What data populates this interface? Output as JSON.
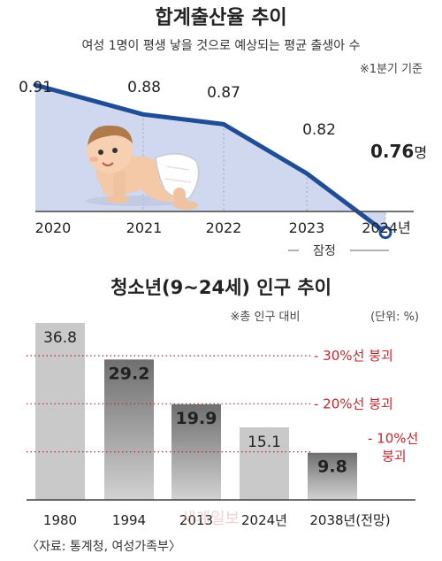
{
  "chart_data": [
    {
      "type": "line",
      "title": "합계출산율 추이",
      "subtitle": "여성 1명이 평생 낳을 것으로 예상되는 평균 출생아 수",
      "note": "※1분기 기준",
      "x": [
        "2020",
        "2021",
        "2022",
        "2023",
        "2024년"
      ],
      "values": [
        0.91,
        0.88,
        0.87,
        0.82,
        0.76
      ],
      "value_labels": [
        "0.91",
        "0.88",
        "0.87",
        "0.82",
        "0.76"
      ],
      "last_value_unit": "명",
      "provisional_label": "잠정",
      "ylim": [
        0.7,
        0.95
      ],
      "colors": {
        "line": "#1f4e97",
        "fill": "#cfd8ef",
        "grid": "#9aa6c4"
      }
    },
    {
      "type": "bar",
      "title": "청소년(9~24세) 인구 추이",
      "note": "※총 인구 대비",
      "unit_label": "(단위: %)",
      "categories": [
        "1980",
        "1994",
        "2013",
        "2024년",
        "2038년(전망)"
      ],
      "values": [
        36.8,
        29.2,
        19.9,
        15.1,
        9.8
      ],
      "value_labels": [
        "36.8",
        "29.2",
        "19.9",
        "15.1",
        "9.8"
      ],
      "ylim": [
        0,
        40
      ],
      "thresholds": [
        {
          "value": 30,
          "label": "- 30%선 붕괴"
        },
        {
          "value": 20,
          "label": "- 20%선 붕괴"
        },
        {
          "value": 10,
          "label": "- 10%선 붕괴"
        }
      ],
      "colors": {
        "bar": "#c9c9c9",
        "bar_dark": "#7d7d7d",
        "threshold": "#c0272d"
      }
    }
  ],
  "source": "〈자료: 통계청, 여성가족부〉",
  "watermark": "세계일보"
}
